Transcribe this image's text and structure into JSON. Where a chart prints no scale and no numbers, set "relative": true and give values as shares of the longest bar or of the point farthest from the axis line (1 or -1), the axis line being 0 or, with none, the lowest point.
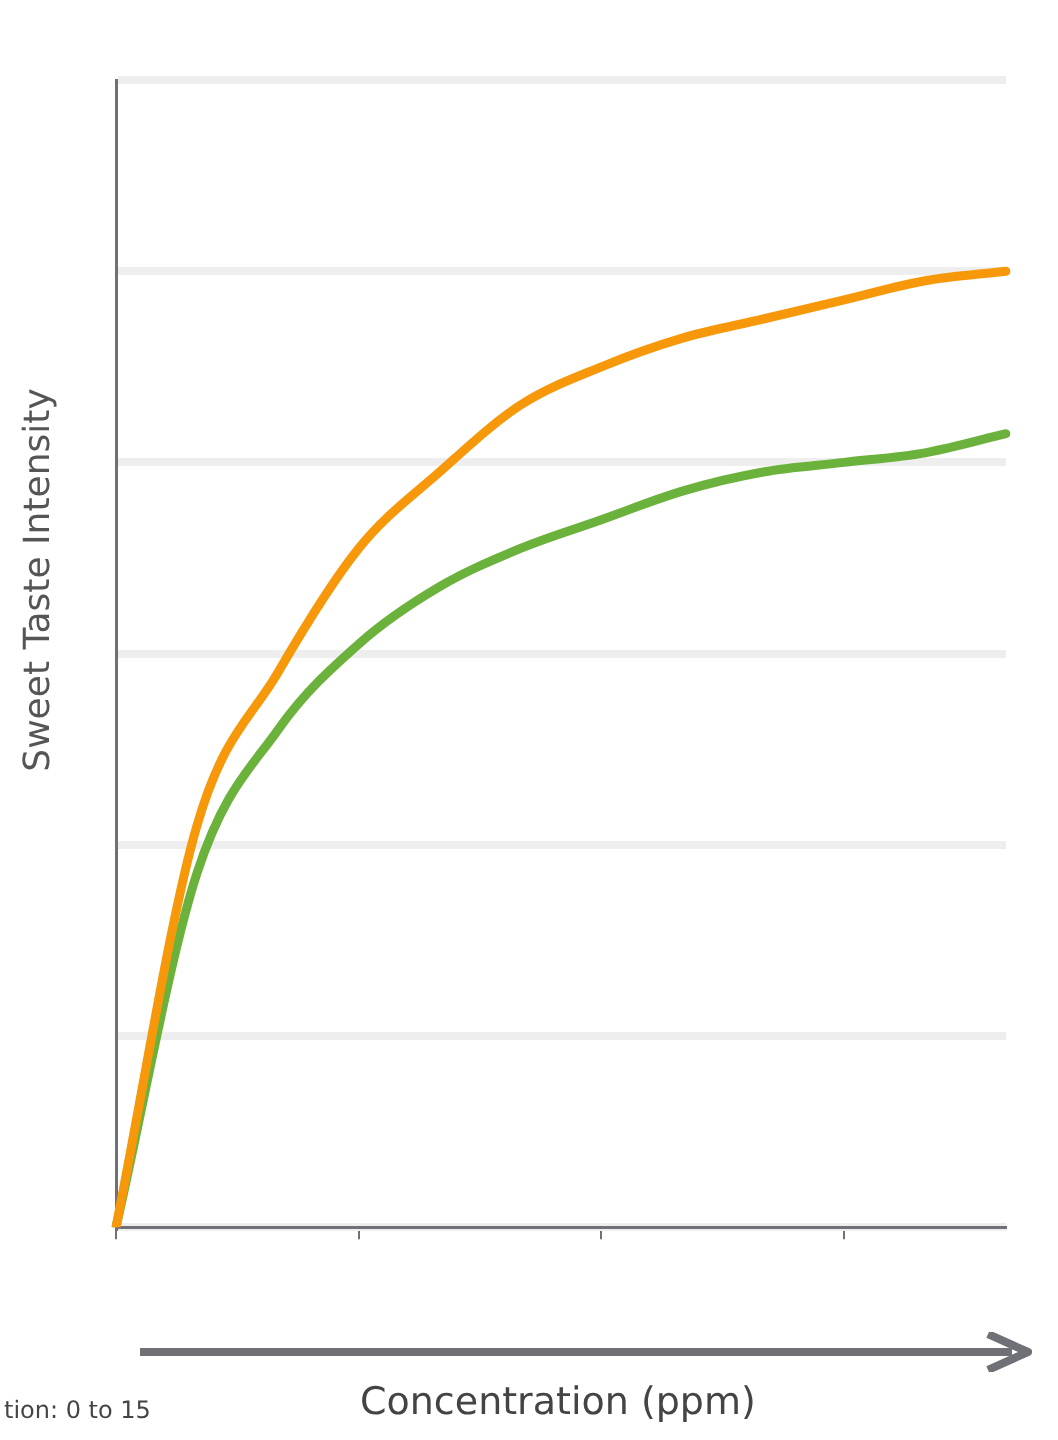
{
  "chart_data": {
    "type": "line",
    "relative": true,
    "xlabel": "Concentration (ppm)",
    "ylabel": "Sweet Taste Intensity",
    "annotations": [
      "tion: 0 to 15"
    ],
    "grid": "y",
    "marker": "none",
    "line_style": "solid",
    "categories": [
      null,
      null,
      null,
      null,
      null,
      null,
      null,
      null,
      null,
      null,
      null,
      null
    ],
    "series": [
      {
        "color": "#f7980b",
        "values": [
          0,
          0.42,
          0.58,
          0.71,
          0.79,
          0.86,
          0.9,
          0.93,
          0.95,
          0.97,
          0.99,
          1
        ]
      },
      {
        "color": "#6ab23b",
        "values": [
          0,
          0.37,
          0.52,
          0.61,
          0.67,
          0.71,
          0.74,
          0.77,
          0.79,
          0.8,
          0.81,
          0.83
        ]
      }
    ]
  }
}
